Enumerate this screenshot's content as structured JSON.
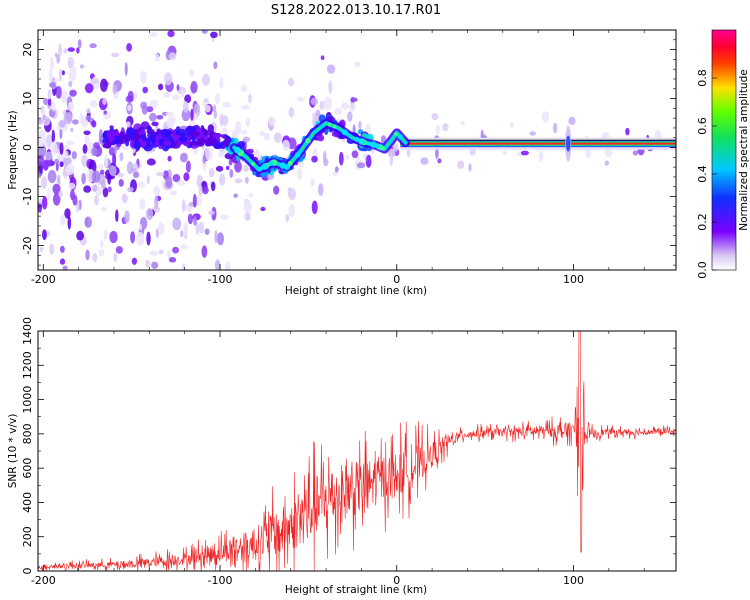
{
  "page": {
    "title": "S128.2022.013.10.17.R01"
  },
  "chart_data": [
    {
      "type": "heatmap",
      "xlabel": "Height of straight line (km)",
      "ylabel": "Frequency (Hz)",
      "xlim": [
        -203,
        158
      ],
      "ylim": [
        -25,
        24
      ],
      "xticks": [
        -200,
        -100,
        0,
        100
      ],
      "yticks": [
        -20,
        -10,
        0,
        10,
        20
      ],
      "grid": false,
      "colorbar": {
        "label": "Normalized spectral amplitude",
        "range": [
          0,
          1
        ],
        "ticks": [
          0.0,
          0.2,
          0.4,
          0.6,
          0.8
        ],
        "colormap": "white-purple-blue-cyan-green-yellow-red-magenta"
      },
      "carrier_trace": [
        [
          -92,
          0
        ],
        [
          -85,
          -2
        ],
        [
          -78,
          -4.5
        ],
        [
          -70,
          -3
        ],
        [
          -62,
          -4
        ],
        [
          -55,
          -1
        ],
        [
          -47,
          3
        ],
        [
          -40,
          5
        ],
        [
          -33,
          4
        ],
        [
          -25,
          2
        ],
        [
          -18,
          1
        ],
        [
          -12,
          0.5
        ],
        [
          -7,
          -0.3
        ],
        [
          -3,
          1.5
        ],
        [
          0,
          3
        ],
        [
          5,
          1
        ],
        [
          15,
          0.5
        ],
        [
          40,
          0.8
        ],
        [
          80,
          0.8
        ],
        [
          100,
          0.8
        ],
        [
          158,
          0.8
        ]
      ],
      "series_colors": {
        "carrier": "#ff2020",
        "ridge": "#00d8e0"
      }
    },
    {
      "type": "line",
      "xlabel": "Height of straight line (km)",
      "ylabel": "SNR (10 * v/v)",
      "xlim": [
        -203,
        158
      ],
      "ylim": [
        0,
        1400
      ],
      "xticks": [
        -200,
        -100,
        0,
        100
      ],
      "yticks": [
        0,
        200,
        400,
        600,
        800,
        1000,
        1200,
        1400
      ],
      "grid": false,
      "line_color": "#ee2222",
      "trend": [
        [
          -203,
          25
        ],
        [
          -150,
          40
        ],
        [
          -120,
          70
        ],
        [
          -100,
          110
        ],
        [
          -80,
          160
        ],
        [
          -60,
          260
        ],
        [
          -45,
          380
        ],
        [
          -30,
          460
        ],
        [
          -20,
          490
        ],
        [
          -10,
          530
        ],
        [
          0,
          560
        ],
        [
          10,
          610
        ],
        [
          20,
          680
        ],
        [
          30,
          760
        ],
        [
          40,
          800
        ],
        [
          60,
          810
        ],
        [
          80,
          815
        ],
        [
          100,
          820
        ],
        [
          104,
          800
        ],
        [
          120,
          810
        ],
        [
          140,
          810
        ],
        [
          158,
          815
        ]
      ],
      "noise_band": [
        [
          -203,
          20
        ],
        [
          -160,
          30
        ],
        [
          -120,
          60
        ],
        [
          -90,
          120
        ],
        [
          -60,
          250
        ],
        [
          -40,
          320
        ],
        [
          -20,
          250
        ],
        [
          0,
          220
        ],
        [
          10,
          200
        ],
        [
          20,
          120
        ],
        [
          35,
          40
        ],
        [
          60,
          40
        ],
        [
          85,
          55
        ],
        [
          95,
          80
        ],
        [
          100,
          60
        ],
        [
          120,
          30
        ],
        [
          158,
          25
        ]
      ],
      "spike": {
        "x": 103.5,
        "max": 1400,
        "min": 110
      }
    }
  ]
}
